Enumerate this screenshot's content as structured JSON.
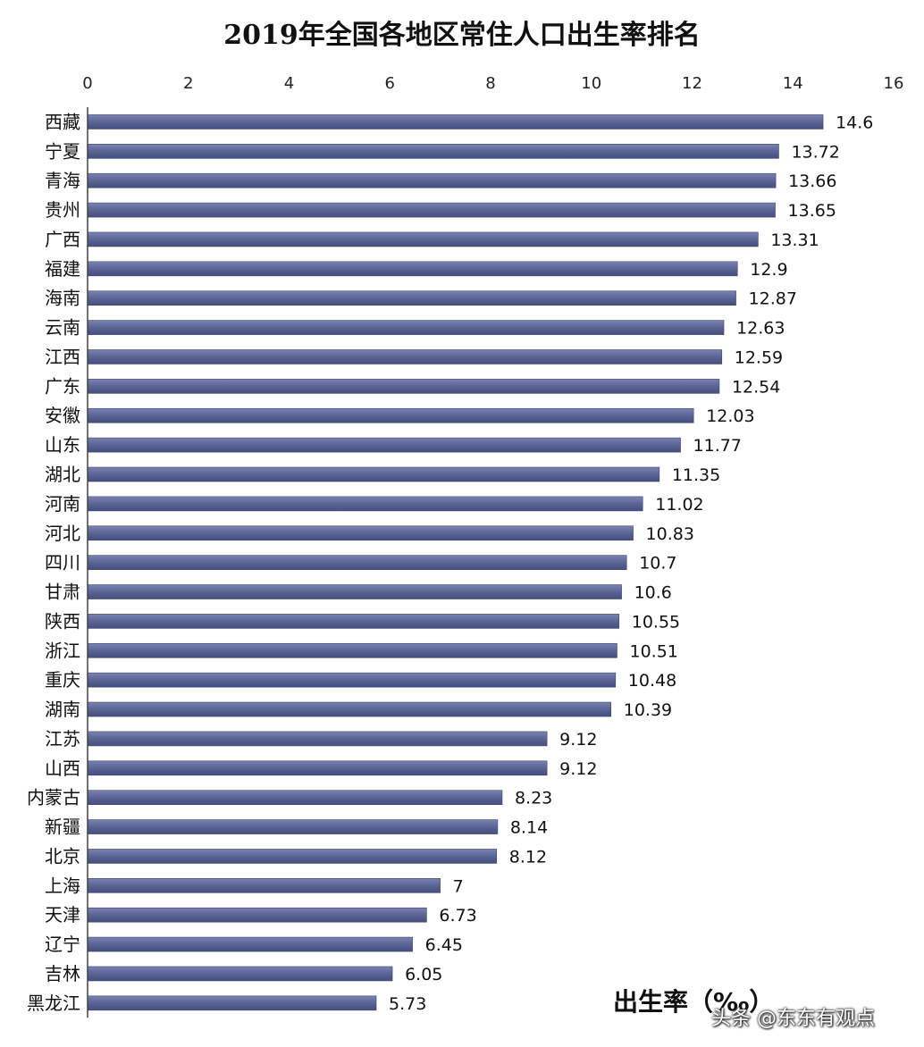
{
  "chart_data": {
    "type": "bar",
    "orientation": "horizontal",
    "title": "2019年全国各地区常住人口出生率排名",
    "xlabel": "出生率（‰）",
    "xlim": [
      0,
      16
    ],
    "xticks": [
      0,
      2,
      4,
      6,
      8,
      10,
      12,
      14,
      16
    ],
    "axis_position": "top",
    "grid": false,
    "bar_color": "#5a6495",
    "categories": [
      "西藏",
      "宁夏",
      "青海",
      "贵州",
      "广西",
      "福建",
      "海南",
      "云南",
      "江西",
      "广东",
      "安徽",
      "山东",
      "湖北",
      "河南",
      "河北",
      "四川",
      "甘肃",
      "陕西",
      "浙江",
      "重庆",
      "湖南",
      "江苏",
      "山西",
      "内蒙古",
      "新疆",
      "北京",
      "上海",
      "天津",
      "辽宁",
      "吉林",
      "黑龙江"
    ],
    "values": [
      14.6,
      13.72,
      13.66,
      13.65,
      13.31,
      12.9,
      12.87,
      12.63,
      12.59,
      12.54,
      12.03,
      11.77,
      11.35,
      11.02,
      10.83,
      10.7,
      10.6,
      10.55,
      10.51,
      10.48,
      10.39,
      9.12,
      9.12,
      8.23,
      8.14,
      8.12,
      7,
      6.73,
      6.45,
      6.05,
      5.73
    ],
    "value_labels": [
      "14.6",
      "13.72",
      "13.66",
      "13.65",
      "13.31",
      "12.9",
      "12.87",
      "12.63",
      "12.59",
      "12.54",
      "12.03",
      "11.77",
      "11.35",
      "11.02",
      "10.83",
      "10.7",
      "10.6",
      "10.55",
      "10.51",
      "10.48",
      "10.39",
      "9.12",
      "9.12",
      "8.23",
      "8.14",
      "8.12",
      "7",
      "6.73",
      "6.45",
      "6.05",
      "5.73"
    ]
  },
  "watermark": "头条 @东东有观点"
}
